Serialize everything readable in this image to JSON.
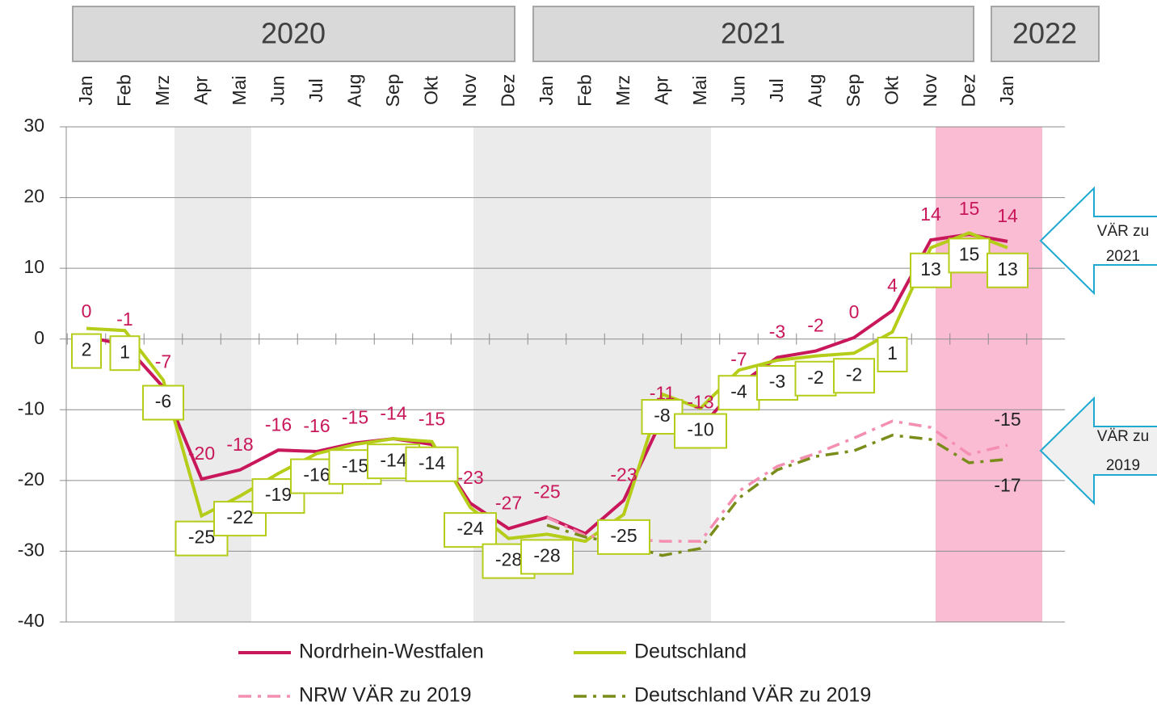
{
  "chart_data": {
    "type": "line",
    "years": [
      "2020",
      "2021",
      "2022"
    ],
    "categories": [
      "Jan",
      "Feb",
      "Mrz",
      "Apr",
      "Mai",
      "Jun",
      "Jul",
      "Aug",
      "Sep",
      "Okt",
      "Nov",
      "Dez",
      "Jan",
      "Feb",
      "Mrz",
      "Apr",
      "Mai",
      "Jun",
      "Jul",
      "Aug",
      "Sep",
      "Okt",
      "Nov",
      "Dez",
      "Jan"
    ],
    "ylim": [
      -40,
      30
    ],
    "yticks": [
      -40,
      -30,
      -20,
      -10,
      0,
      10,
      20,
      30
    ],
    "grid": true,
    "series": [
      {
        "name": "Nordrhein-Westfalen",
        "color": "#c8175a",
        "style": "solid",
        "label_style": "text",
        "values": [
          0.3,
          -0.8,
          -6.8,
          -19.8,
          -18.5,
          -15.7,
          -15.9,
          -14.7,
          -14.1,
          -14.9,
          -23.2,
          -26.8,
          -25.2,
          -27.5,
          -22.8,
          -11.3,
          -12.5,
          -6.5,
          -2.6,
          -1.7,
          0.2,
          4,
          14,
          14.8,
          13.8
        ],
        "value_labels": [
          "0",
          "-1",
          "-7",
          "-20",
          "-18",
          "-16",
          "-16",
          "-15",
          "-14",
          "-15",
          "-23",
          "-27",
          "-25",
          null,
          "-23",
          "-11",
          "-13",
          "-7",
          "-3",
          "-2",
          "0",
          "4",
          "14",
          "15",
          "14"
        ]
      },
      {
        "name": "Deutschland",
        "color": "#b5cc18",
        "style": "solid",
        "label_style": "box",
        "values": [
          1.5,
          1.2,
          -5.8,
          -25,
          -22.2,
          -19,
          -16.2,
          -14.9,
          -14.1,
          -14.5,
          -23.8,
          -28.2,
          -27.6,
          -28.6,
          -24.8,
          -7.8,
          -9.8,
          -4.4,
          -3,
          -2.4,
          -2,
          1,
          12.9,
          15,
          12.9
        ],
        "value_labels": [
          "2",
          "1",
          "-6",
          "-25",
          "-22",
          "-19",
          "-16",
          "-15",
          "-14",
          "-14",
          "-24",
          "-28",
          "-28",
          null,
          "-25",
          "-8",
          "-10",
          "-4",
          "-3",
          "-2",
          "-2",
          "1",
          "13",
          "15",
          "13"
        ]
      },
      {
        "name": "NRW VÄR zu 2019",
        "color": "#f48fb1",
        "style": "dashdot",
        "label_style": "above",
        "values": [
          null,
          null,
          null,
          null,
          null,
          null,
          null,
          null,
          null,
          null,
          null,
          null,
          -25.2,
          -27.8,
          -28.2,
          -28.6,
          -28.6,
          -21.5,
          -18,
          -16.2,
          -14,
          -11.6,
          -12.5,
          -16.3,
          -15
        ],
        "value_labels": [
          null,
          null,
          null,
          null,
          null,
          null,
          null,
          null,
          null,
          null,
          null,
          null,
          null,
          null,
          null,
          null,
          null,
          null,
          null,
          null,
          null,
          null,
          null,
          null,
          "-15"
        ]
      },
      {
        "name": "Deutschland VÄR zu 2019",
        "color": "#7a8c1a",
        "style": "dashdot",
        "label_style": "below",
        "values": [
          null,
          null,
          null,
          null,
          null,
          null,
          null,
          null,
          null,
          null,
          null,
          null,
          -26.3,
          -28,
          -29,
          -30.6,
          -29.6,
          -22.5,
          -18.5,
          -16.6,
          -15.8,
          -13.6,
          -14.2,
          -17.5,
          -17
        ],
        "value_labels": [
          null,
          null,
          null,
          null,
          null,
          null,
          null,
          null,
          null,
          null,
          null,
          null,
          null,
          null,
          null,
          null,
          null,
          null,
          null,
          null,
          null,
          null,
          null,
          null,
          "-17"
        ]
      }
    ],
    "annotations": [
      {
        "lines": [
          "VÄR zu",
          "2021"
        ]
      },
      {
        "lines": [
          "VÄR zu",
          "2019"
        ]
      }
    ]
  }
}
